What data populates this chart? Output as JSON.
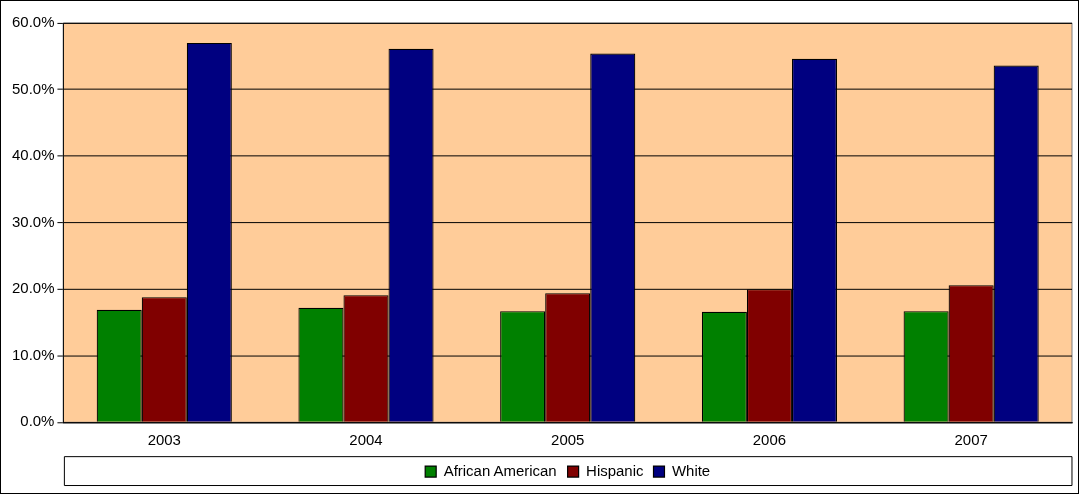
{
  "chart_data": {
    "type": "bar",
    "categories": [
      "2003",
      "2004",
      "2005",
      "2006",
      "2007"
    ],
    "series": [
      {
        "name": "African American",
        "color": "#008000",
        "values": [
          16.9,
          17.2,
          16.7,
          16.6,
          16.7
        ]
      },
      {
        "name": "Hispanic",
        "color": "#800000",
        "values": [
          18.8,
          19.1,
          19.4,
          20.0,
          20.6
        ]
      },
      {
        "name": "White",
        "color": "#000080",
        "values": [
          57.0,
          56.1,
          55.4,
          54.6,
          53.6
        ]
      }
    ],
    "ylim": [
      0,
      60
    ],
    "yticks": [
      {
        "value": 0,
        "label": "0.0%"
      },
      {
        "value": 10,
        "label": "10.0%"
      },
      {
        "value": 20,
        "label": "20.0%"
      },
      {
        "value": 30,
        "label": "30.0%"
      },
      {
        "value": 40,
        "label": "40.0%"
      },
      {
        "value": 50,
        "label": "50.0%"
      },
      {
        "value": 60,
        "label": "60.0%"
      }
    ],
    "grid": "y",
    "legend": "bottom"
  }
}
